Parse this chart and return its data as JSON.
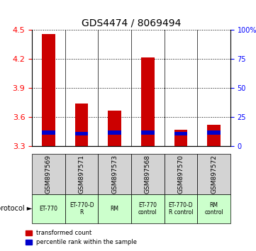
{
  "title": "GDS4474 / 8069494",
  "samples": [
    "GSM897569",
    "GSM897571",
    "GSM897573",
    "GSM897568",
    "GSM897570",
    "GSM897572"
  ],
  "red_values": [
    4.46,
    3.74,
    3.67,
    4.22,
    3.47,
    3.52
  ],
  "blue_values": [
    3.44,
    3.43,
    3.44,
    3.44,
    3.43,
    3.44
  ],
  "ymin": 3.3,
  "ymax": 4.5,
  "yticks": [
    3.3,
    3.6,
    3.9,
    4.2,
    4.5
  ],
  "right_yticks": [
    0,
    25,
    50,
    75,
    100
  ],
  "protocols": [
    "ET-770",
    "ET-770-D\nR",
    "RM",
    "ET-770\ncontrol",
    "ET-770-D\nR control",
    "RM\ncontrol"
  ],
  "protocol_colors": [
    "#ccffcc",
    "#ccffcc",
    "#ccffcc",
    "#ccffcc",
    "#ccffcc",
    "#ccffcc"
  ],
  "bar_color_red": "#cc0000",
  "bar_color_blue": "#0000cc",
  "background_gray": "#d3d3d3",
  "background_green": "#ccffcc",
  "legend_red": "transformed count",
  "legend_blue": "percentile rank within the sample",
  "bar_width": 0.4
}
